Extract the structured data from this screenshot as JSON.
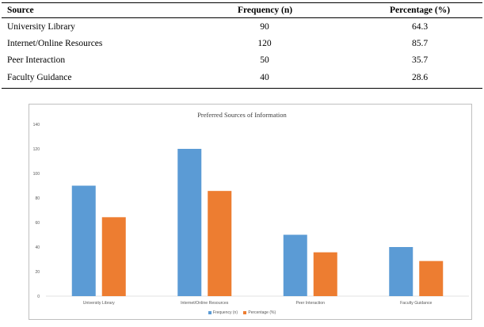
{
  "table": {
    "headers": [
      "Source",
      "Frequency (n)",
      "Percentage (%)"
    ],
    "rows": [
      {
        "source": "University Library",
        "frequency": "90",
        "percentage": "64.3"
      },
      {
        "source": "Internet/Online Resources",
        "frequency": "120",
        "percentage": "85.7"
      },
      {
        "source": "Peer Interaction",
        "frequency": "50",
        "percentage": "35.7"
      },
      {
        "source": "Faculty Guidance",
        "frequency": "40",
        "percentage": "28.6"
      }
    ]
  },
  "chart_data": {
    "type": "bar",
    "title": "Preferred Sources of Information",
    "xlabel": "",
    "ylabel": "",
    "categories": [
      "University Library",
      "Internet/Online Resources",
      "Peer Interaction",
      "Faculty Guidance"
    ],
    "series": [
      {
        "name": "Frequency (n)",
        "values": [
          90,
          120,
          50,
          40
        ],
        "color": "#5b9bd5"
      },
      {
        "name": "Percentage (%)",
        "values": [
          64.3,
          85.7,
          35.7,
          28.6
        ],
        "color": "#ed7d31"
      }
    ],
    "ylim": [
      0,
      140
    ],
    "yticks": [
      0,
      20,
      40,
      60,
      80,
      100,
      120,
      140
    ],
    "grid": false,
    "legend": "bottom"
  }
}
